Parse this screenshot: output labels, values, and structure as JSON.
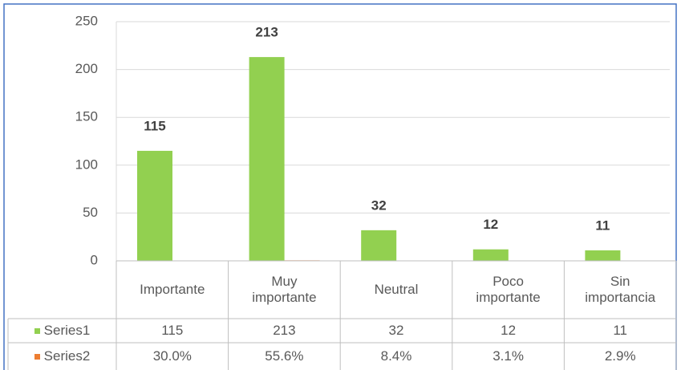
{
  "chart_data": {
    "type": "bar",
    "categories": [
      "Importante",
      "Muy importante",
      "Neutral",
      "Poco importante",
      "Sin importancia"
    ],
    "series": [
      {
        "name": "Series1",
        "color": "#92d050",
        "values": [
          115,
          213,
          32,
          12,
          11
        ]
      },
      {
        "name": "Series2",
        "color": "#ed7d31",
        "values": [
          0.3,
          0.556,
          0.084,
          0.031,
          0.029
        ],
        "value_labels": [
          "30.0%",
          "55.6%",
          "8.4%",
          "3.1%",
          "2.9%"
        ]
      }
    ],
    "ylim": [
      0,
      250
    ],
    "yticks": [
      0,
      50,
      100,
      150,
      200,
      250
    ],
    "grid": true
  }
}
